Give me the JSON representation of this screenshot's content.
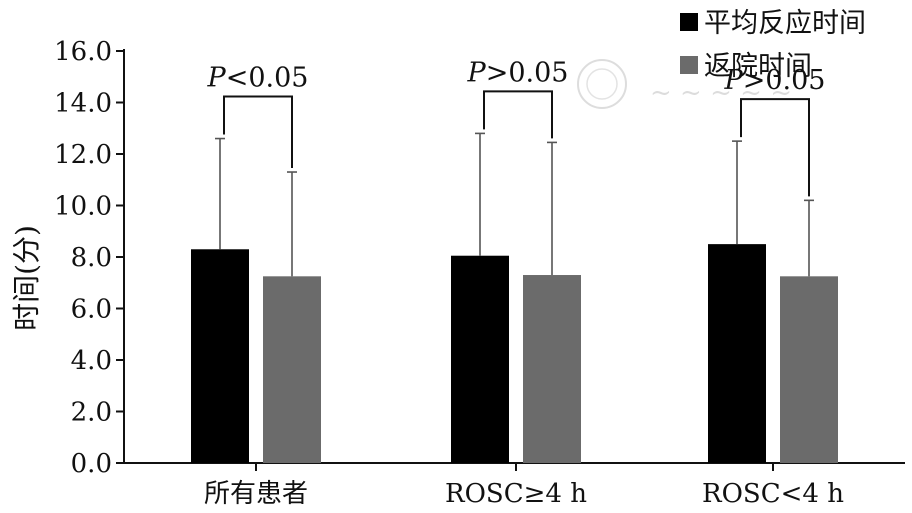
{
  "chart_data": {
    "type": "bar",
    "title": "",
    "xlabel": "",
    "ylabel": "时间(分)",
    "ylim": [
      0,
      16
    ],
    "yticks": [
      "0.0",
      "2.0",
      "4.0",
      "6.0",
      "8.0",
      "10.0",
      "12.0",
      "14.0",
      "16.0"
    ],
    "grid": false,
    "legend_position": "top-right",
    "categories": [
      "所有患者",
      "ROSC≥4 h",
      "ROSC<4 h"
    ],
    "series": [
      {
        "name": "平均反应时间",
        "color": "#000000",
        "values": [
          8.3,
          8.05,
          8.5
        ],
        "error_upper": [
          12.6,
          12.8,
          12.5
        ]
      },
      {
        "name": "返院时间",
        "color": "#6b6b6b",
        "values": [
          7.25,
          7.3,
          7.25
        ],
        "error_upper": [
          11.3,
          12.45,
          10.2
        ]
      }
    ],
    "annotations": [
      {
        "category_index": 0,
        "italic": "P",
        "text": "<0.05"
      },
      {
        "category_index": 1,
        "italic": "P",
        "text": ">0.05"
      },
      {
        "category_index": 2,
        "italic": "P",
        "text": ">0.05"
      }
    ]
  }
}
